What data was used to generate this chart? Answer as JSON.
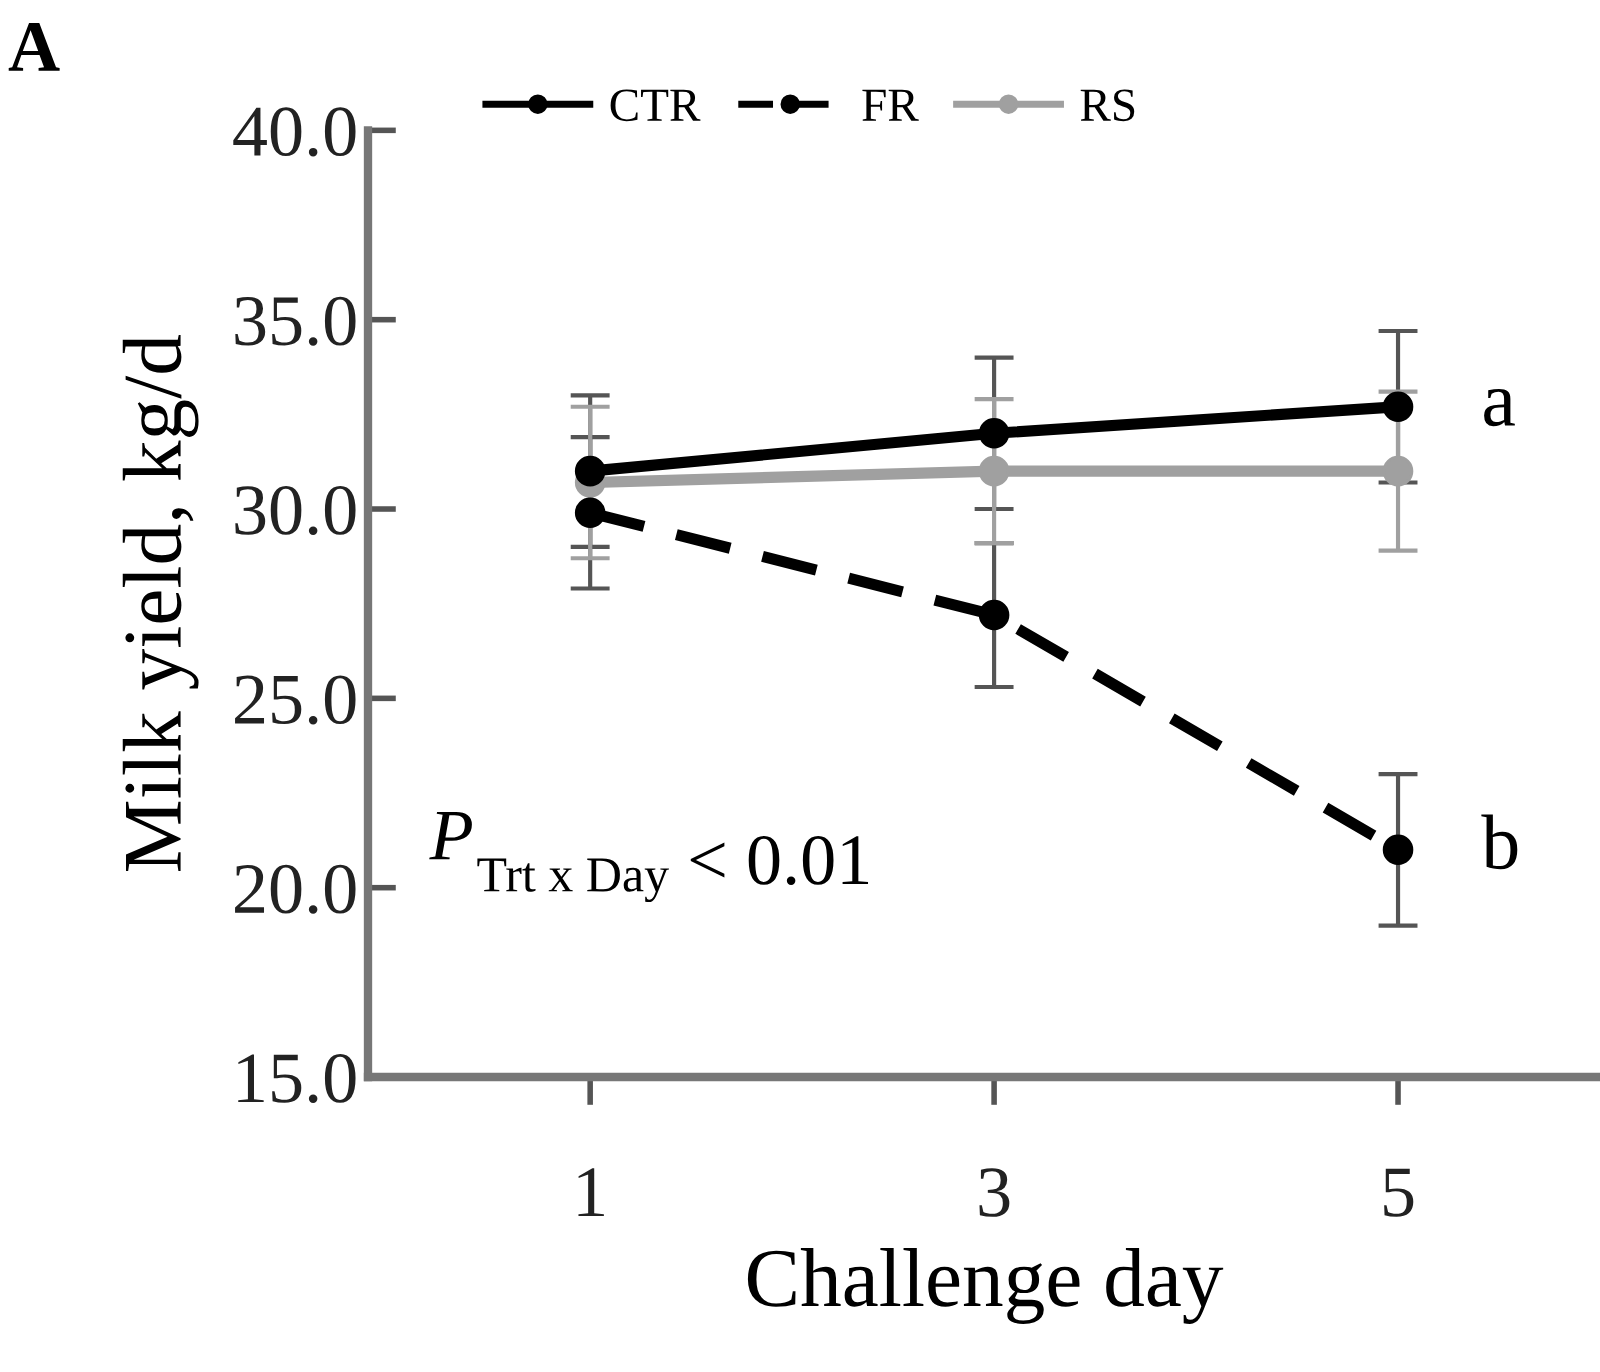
{
  "chart_data": {
    "type": "line",
    "xlabel": "Challenge day",
    "ylabel": "Milk yield, kg/d",
    "categories": [
      "1",
      "3",
      "5"
    ],
    "series": [
      {
        "name": "CTR",
        "color": "#000000",
        "values": [
          31.0,
          32.0,
          32.7
        ],
        "errors": [
          2,
          2,
          2
        ],
        "line_style": "solid"
      },
      {
        "name": "FR",
        "color": "#000000",
        "values": [
          29.9,
          27.2,
          21.0
        ],
        "errors": [
          2,
          1.9,
          2
        ],
        "line_style": "dashed"
      },
      {
        "name": "RS",
        "color": "#a0a0a0",
        "values": [
          30.7,
          31.0,
          31.0
        ],
        "errors": [
          2,
          1.9,
          2.1
        ],
        "line_style": "solid"
      }
    ],
    "ylim": [
      15,
      40
    ],
    "yticks": [
      {
        "value": 15,
        "label": "15.0"
      },
      {
        "value": 20,
        "label": "20.0"
      },
      {
        "value": 25,
        "label": "25.0"
      },
      {
        "value": 30,
        "label": "30.0"
      },
      {
        "value": 35,
        "label": "35.0"
      },
      {
        "value": 40,
        "label": "40.0"
      }
    ],
    "marker": "circle",
    "grid": false,
    "legend": "top",
    "annotations": [
      "A",
      {
        "text": "a",
        "x": "5",
        "y": 32.7
      },
      {
        "text": "b",
        "x": "5",
        "y": 21.0
      },
      "P$_{Trt x Day}$ < 0.01"
    ]
  }
}
